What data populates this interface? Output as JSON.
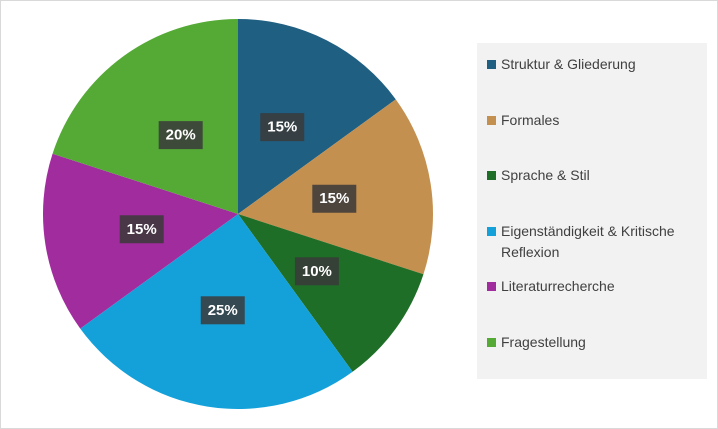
{
  "chart_data": {
    "type": "pie",
    "categories": [
      "Struktur & Gliederung",
      "Formales",
      "Sprache & Stil",
      "Eigenständigkeit & Kritische Reflexion",
      "Literaturrecherche",
      "Fragestellung"
    ],
    "values": [
      15,
      15,
      10,
      25,
      15,
      20
    ],
    "value_labels": [
      "15%",
      "15%",
      "10%",
      "25%",
      "15%",
      "20%"
    ],
    "colors": [
      "#1f5f82",
      "#c4904f",
      "#1f6e27",
      "#14a1da",
      "#a12c9d",
      "#54aa35"
    ],
    "legend": "right"
  }
}
